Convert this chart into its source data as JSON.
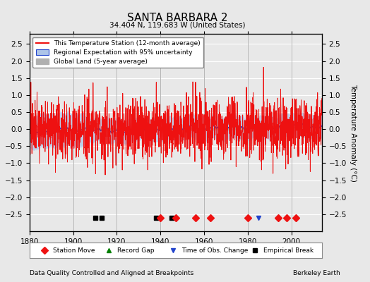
{
  "title": "SANTA BARBARA 2",
  "subtitle": "34.404 N, 119.683 W (United States)",
  "ylabel": "Temperature Anomaly (°C)",
  "footer_left": "Data Quality Controlled and Aligned at Breakpoints",
  "footer_right": "Berkeley Earth",
  "xlim": [
    1880,
    2014
  ],
  "ylim": [
    -3,
    2.8
  ],
  "yticks": [
    -2.5,
    -2,
    -1.5,
    -1,
    -0.5,
    0,
    0.5,
    1,
    1.5,
    2,
    2.5
  ],
  "xticks": [
    1880,
    1900,
    1920,
    1940,
    1960,
    1980,
    2000
  ],
  "bg_color": "#e8e8e8",
  "plot_bg_color": "#e8e8e8",
  "grid_color": "#ffffff",
  "station_move_years": [
    1940,
    1947,
    1956,
    1963,
    1980,
    1994,
    1998,
    2002
  ],
  "empirical_break_years": [
    1910,
    1913,
    1938,
    1945
  ],
  "tobs_change_years": [
    1985
  ],
  "record_gap_years": [],
  "vertical_line_years": [
    1900,
    1920,
    1940,
    1960,
    1980,
    2000
  ],
  "seed": 42
}
